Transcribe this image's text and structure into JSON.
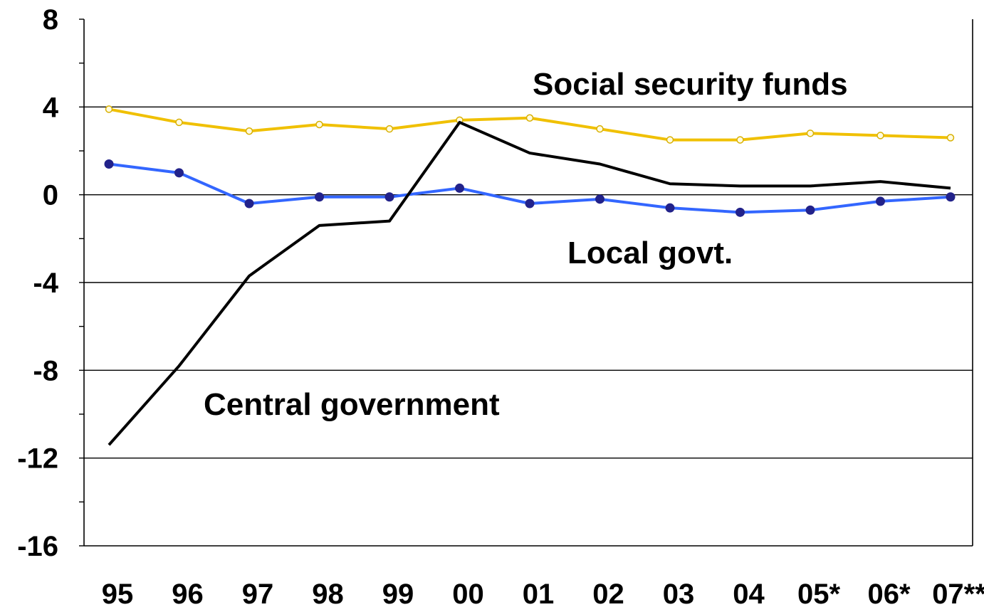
{
  "chart_data": {
    "type": "line",
    "title": "",
    "xlabel": "",
    "ylabel": "",
    "categories": [
      "95",
      "96",
      "97",
      "98",
      "99",
      "00",
      "01",
      "02",
      "03",
      "04",
      "05*",
      "06*",
      "07**"
    ],
    "ylim": [
      -16,
      8
    ],
    "yticks": [
      8,
      4,
      0,
      -4,
      -8,
      -12,
      -16
    ],
    "grid": true,
    "series": [
      {
        "name": "Social security funds",
        "color": "#f0c000",
        "marker": "open-circle",
        "values": [
          3.9,
          3.3,
          2.9,
          3.2,
          3.0,
          3.4,
          3.5,
          3.0,
          2.5,
          2.5,
          2.8,
          2.7,
          2.6
        ]
      },
      {
        "name": "Local govt.",
        "color": "#3366ff",
        "marker": "filled-circle",
        "values": [
          1.4,
          1.0,
          -0.4,
          -0.1,
          -0.1,
          0.3,
          -0.4,
          -0.2,
          -0.6,
          -0.8,
          -0.7,
          -0.3,
          -0.1
        ]
      },
      {
        "name": "Central government",
        "color": "#000000",
        "marker": "none",
        "values": [
          -11.4,
          -7.8,
          -3.7,
          -1.4,
          -1.2,
          3.3,
          1.9,
          1.4,
          0.5,
          0.4,
          0.4,
          0.6,
          0.3
        ]
      }
    ]
  }
}
